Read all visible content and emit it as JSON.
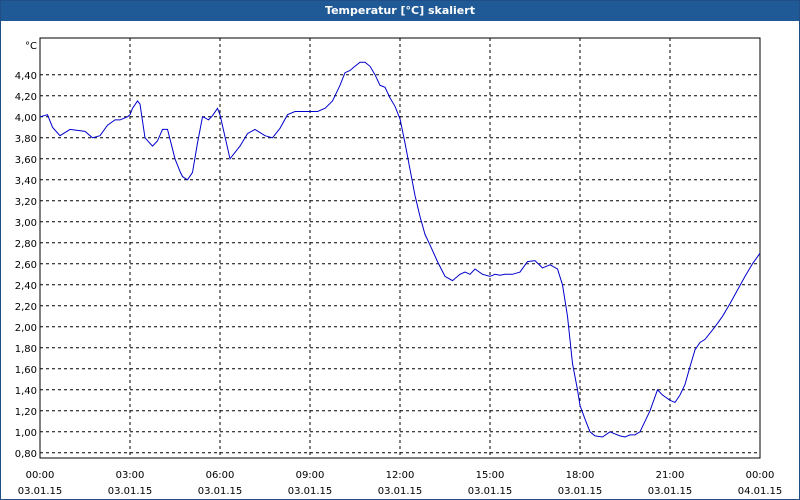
{
  "window": {
    "title": "Temperatur [°C] skaliert"
  },
  "chart_data": {
    "type": "line",
    "title": "Temperatur [°C] skaliert",
    "ylabel": "°C",
    "xlabel": "",
    "ylim": [
      0.75,
      4.75
    ],
    "xlim_hours": [
      0,
      24
    ],
    "grid": true,
    "y_ticks": [
      "0,80",
      "1,00",
      "1,20",
      "1,40",
      "1,60",
      "1,80",
      "2,00",
      "2,20",
      "2,40",
      "2,60",
      "2,80",
      "3,00",
      "3,20",
      "3,40",
      "3,60",
      "3,80",
      "4,00",
      "4,20",
      "4,40"
    ],
    "x_ticks": [
      {
        "time": "00:00",
        "date": "03.01.15"
      },
      {
        "time": "03:00",
        "date": "03.01.15"
      },
      {
        "time": "06:00",
        "date": "03.01.15"
      },
      {
        "time": "09:00",
        "date": "03.01.15"
      },
      {
        "time": "12:00",
        "date": "03.01.15"
      },
      {
        "time": "15:00",
        "date": "03.01.15"
      },
      {
        "time": "18:00",
        "date": "03.01.15"
      },
      {
        "time": "21:00",
        "date": "03.01.15"
      },
      {
        "time": "00:00",
        "date": "04.01.15"
      }
    ],
    "series": [
      {
        "color": "#0000cc",
        "x": [
          "03.01.15 00:00",
          "03.01.15 00:15",
          "03.01.15 00:25",
          "03.01.15 00:40",
          "03.01.15 01:00",
          "03.01.15 01:30",
          "03.01.15 01:45",
          "03.01.15 02:00",
          "03.01.15 02:15",
          "03.01.15 02:30",
          "03.01.15 02:40",
          "03.01.15 02:55",
          "03.01.15 03:00",
          "03.01.15 03:05",
          "03.01.15 03:15",
          "03.01.15 03:20",
          "03.01.15 03:30",
          "03.01.15 03:45",
          "03.01.15 03:55",
          "03.01.15 04:05",
          "03.01.15 04:15",
          "03.01.15 04:30",
          "03.01.15 04:40",
          "03.01.15 04:45",
          "03.01.15 04:55",
          "03.01.15 05:05",
          "03.01.15 05:15",
          "03.01.15 05:25",
          "03.01.15 05:30",
          "03.01.15 05:37",
          "03.01.15 05:45",
          "03.01.15 05:55",
          "03.01.15 06:00",
          "03.01.15 06:20",
          "03.01.15 06:40",
          "03.01.15 06:55",
          "03.01.15 07:10",
          "03.01.15 07:30",
          "03.01.15 07:45",
          "03.01.15 08:00",
          "03.01.15 08:15",
          "03.01.15 08:30",
          "03.01.15 09:00",
          "03.01.15 09:15",
          "03.01.15 09:30",
          "03.01.15 09:45",
          "03.01.15 10:00",
          "03.01.15 10:10",
          "03.01.15 10:20",
          "03.01.15 10:30",
          "03.01.15 10:40",
          "03.01.15 10:50",
          "03.01.15 11:00",
          "03.01.15 11:10",
          "03.01.15 11:20",
          "03.01.15 11:30",
          "03.01.15 11:40",
          "03.01.15 11:50",
          "03.01.15 12:00",
          "03.01.15 12:10",
          "03.01.15 12:20",
          "03.01.15 12:30",
          "03.01.15 12:40",
          "03.01.15 12:50",
          "03.01.15 13:00",
          "03.01.15 13:15",
          "03.01.15 13:30",
          "03.01.15 13:45",
          "03.01.15 14:00",
          "03.01.15 14:10",
          "03.01.15 14:20",
          "03.01.15 14:30",
          "03.01.15 14:45",
          "03.01.15 15:00",
          "03.01.15 15:10",
          "03.01.15 15:20",
          "03.01.15 15:30",
          "03.01.15 15:45",
          "03.01.15 16:00",
          "03.01.15 16:15",
          "03.01.15 16:30",
          "03.01.15 16:45",
          "03.01.15 17:00",
          "03.01.15 17:15",
          "03.01.15 17:25",
          "03.01.15 17:35",
          "03.01.15 17:45",
          "03.01.15 17:55",
          "03.01.15 18:00",
          "03.01.15 18:10",
          "03.01.15 18:20",
          "03.01.15 18:30",
          "03.01.15 18:45",
          "03.01.15 19:00",
          "03.01.15 19:10",
          "03.01.15 19:20",
          "03.01.15 19:30",
          "03.01.15 19:40",
          "03.01.15 19:50",
          "03.01.15 20:00",
          "03.01.15 20:10",
          "03.01.15 20:20",
          "03.01.15 20:35",
          "03.01.15 20:45",
          "03.01.15 21:00",
          "03.01.15 21:10",
          "03.01.15 21:20",
          "03.01.15 21:30",
          "03.01.15 21:40",
          "03.01.15 21:50",
          "03.01.15 22:00",
          "03.01.15 22:10",
          "03.01.15 22:30",
          "03.01.15 22:45",
          "03.01.15 23:00",
          "03.01.15 23:15",
          "03.01.15 23:30",
          "03.01.15 23:45",
          "04.01.15 00:00"
        ],
        "y": [
          4.0,
          4.02,
          3.9,
          3.82,
          3.88,
          3.86,
          3.8,
          3.82,
          3.92,
          3.97,
          3.97,
          4.0,
          4.02,
          4.08,
          4.15,
          4.12,
          3.8,
          3.72,
          3.77,
          3.88,
          3.88,
          3.6,
          3.48,
          3.43,
          3.4,
          3.47,
          3.75,
          4.0,
          3.99,
          3.97,
          4.01,
          4.08,
          4.02,
          3.6,
          3.72,
          3.84,
          3.88,
          3.82,
          3.8,
          3.89,
          4.02,
          4.05,
          4.05,
          4.05,
          4.08,
          4.15,
          4.3,
          4.42,
          4.44,
          4.48,
          4.52,
          4.52,
          4.48,
          4.4,
          4.3,
          4.28,
          4.18,
          4.1,
          3.98,
          3.75,
          3.5,
          3.25,
          3.05,
          2.88,
          2.78,
          2.62,
          2.48,
          2.44,
          2.5,
          2.52,
          2.5,
          2.55,
          2.5,
          2.48,
          2.5,
          2.49,
          2.5,
          2.5,
          2.52,
          2.62,
          2.63,
          2.56,
          2.59,
          2.55,
          2.4,
          2.1,
          1.65,
          1.4,
          1.25,
          1.12,
          1.0,
          0.96,
          0.95,
          1.0,
          0.98,
          0.96,
          0.95,
          0.97,
          0.97,
          1.0,
          1.1,
          1.2,
          1.4,
          1.35,
          1.3,
          1.28,
          1.35,
          1.45,
          1.62,
          1.78,
          1.85,
          1.88,
          2.0,
          2.1,
          2.22,
          2.35,
          2.48,
          2.6,
          2.7
        ]
      }
    ]
  }
}
